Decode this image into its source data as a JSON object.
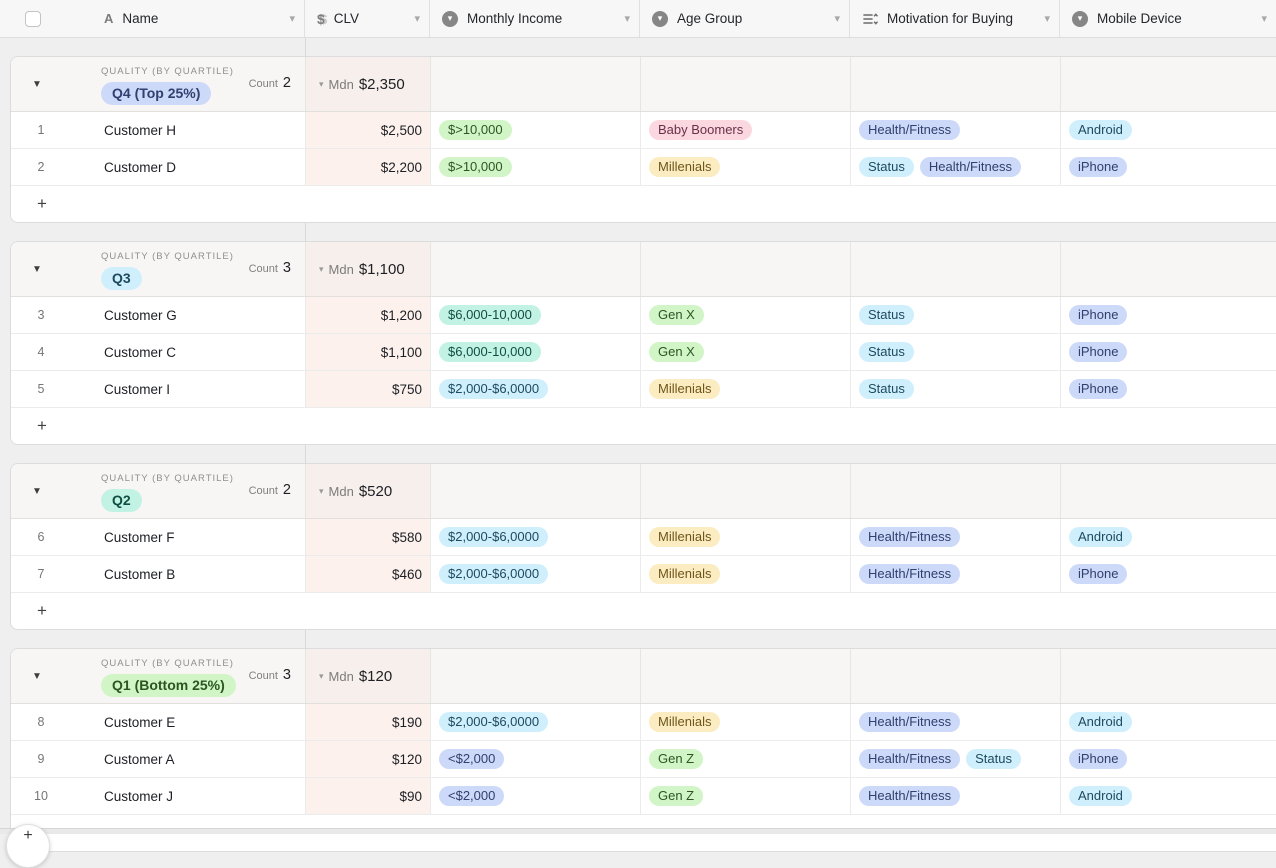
{
  "header": {
    "columns": [
      {
        "label": "Name",
        "icon": "text-field-icon"
      },
      {
        "label": "CLV",
        "icon": "currency-icon"
      },
      {
        "label": "Monthly Income",
        "icon": "single-select-icon"
      },
      {
        "label": "Age Group",
        "icon": "single-select-icon"
      },
      {
        "label": "Motivation for Buying",
        "icon": "multi-select-icon"
      },
      {
        "label": "Mobile Device",
        "icon": "single-select-icon"
      }
    ]
  },
  "labels": {
    "group_field": "QUALITY (BY QUARTILE)",
    "count": "Count",
    "summary": "Mdn",
    "add_row": "+"
  },
  "colors": {
    "blue": {
      "bg": "#cdd9f8",
      "text": "#30406f"
    },
    "cyan": {
      "bg": "#d0effc",
      "text": "#1d4a5f"
    },
    "teal": {
      "bg": "#c2f2e4",
      "text": "#0d4f42"
    },
    "green": {
      "bg": "#d2f5c7",
      "text": "#2b5620"
    },
    "yellow": {
      "bg": "#fcecc2",
      "text": "#6e561a"
    },
    "red": {
      "bg": "#fbd8e0",
      "text": "#6b3048"
    },
    "clv_column_tint": "#fcf1ec",
    "group_header_bg": "#f7f6f4"
  },
  "groups": [
    {
      "value": "Q4 (Top 25%)",
      "color": "blue",
      "count": "2",
      "median": "$2,350",
      "rows": [
        {
          "num": "1",
          "name": "Customer H",
          "clv": "$2,500",
          "income": [
            {
              "text": "$>10,000",
              "color": "green"
            }
          ],
          "age": [
            {
              "text": "Baby Boomers",
              "color": "red"
            }
          ],
          "motivation": [
            {
              "text": "Health/Fitness",
              "color": "blue"
            }
          ],
          "device": [
            {
              "text": "Android",
              "color": "cyan"
            }
          ]
        },
        {
          "num": "2",
          "name": "Customer D",
          "clv": "$2,200",
          "income": [
            {
              "text": "$>10,000",
              "color": "green"
            }
          ],
          "age": [
            {
              "text": "Millenials",
              "color": "yellow"
            }
          ],
          "motivation": [
            {
              "text": "Status",
              "color": "cyan"
            },
            {
              "text": "Health/Fitness",
              "color": "blue"
            }
          ],
          "device": [
            {
              "text": "iPhone",
              "color": "blue"
            }
          ]
        }
      ]
    },
    {
      "value": "Q3",
      "color": "cyan",
      "count": "3",
      "median": "$1,100",
      "rows": [
        {
          "num": "3",
          "name": "Customer G",
          "clv": "$1,200",
          "income": [
            {
              "text": "$6,000-10,000",
              "color": "teal"
            }
          ],
          "age": [
            {
              "text": "Gen X",
              "color": "green"
            }
          ],
          "motivation": [
            {
              "text": "Status",
              "color": "cyan"
            }
          ],
          "device": [
            {
              "text": "iPhone",
              "color": "blue"
            }
          ]
        },
        {
          "num": "4",
          "name": "Customer C",
          "clv": "$1,100",
          "income": [
            {
              "text": "$6,000-10,000",
              "color": "teal"
            }
          ],
          "age": [
            {
              "text": "Gen X",
              "color": "green"
            }
          ],
          "motivation": [
            {
              "text": "Status",
              "color": "cyan"
            }
          ],
          "device": [
            {
              "text": "iPhone",
              "color": "blue"
            }
          ]
        },
        {
          "num": "5",
          "name": "Customer I",
          "clv": "$750",
          "income": [
            {
              "text": "$2,000-$6,0000",
              "color": "cyan"
            }
          ],
          "age": [
            {
              "text": "Millenials",
              "color": "yellow"
            }
          ],
          "motivation": [
            {
              "text": "Status",
              "color": "cyan"
            }
          ],
          "device": [
            {
              "text": "iPhone",
              "color": "blue"
            }
          ]
        }
      ]
    },
    {
      "value": "Q2",
      "color": "teal",
      "count": "2",
      "median": "$520",
      "rows": [
        {
          "num": "6",
          "name": "Customer F",
          "clv": "$580",
          "income": [
            {
              "text": "$2,000-$6,0000",
              "color": "cyan"
            }
          ],
          "age": [
            {
              "text": "Millenials",
              "color": "yellow"
            }
          ],
          "motivation": [
            {
              "text": "Health/Fitness",
              "color": "blue"
            }
          ],
          "device": [
            {
              "text": "Android",
              "color": "cyan"
            }
          ]
        },
        {
          "num": "7",
          "name": "Customer B",
          "clv": "$460",
          "income": [
            {
              "text": "$2,000-$6,0000",
              "color": "cyan"
            }
          ],
          "age": [
            {
              "text": "Millenials",
              "color": "yellow"
            }
          ],
          "motivation": [
            {
              "text": "Health/Fitness",
              "color": "blue"
            }
          ],
          "device": [
            {
              "text": "iPhone",
              "color": "blue"
            }
          ]
        }
      ]
    },
    {
      "value": "Q1 (Bottom 25%)",
      "color": "green",
      "count": "3",
      "median": "$120",
      "rows": [
        {
          "num": "8",
          "name": "Customer E",
          "clv": "$190",
          "income": [
            {
              "text": "$2,000-$6,0000",
              "color": "cyan"
            }
          ],
          "age": [
            {
              "text": "Millenials",
              "color": "yellow"
            }
          ],
          "motivation": [
            {
              "text": "Health/Fitness",
              "color": "blue"
            }
          ],
          "device": [
            {
              "text": "Android",
              "color": "cyan"
            }
          ]
        },
        {
          "num": "9",
          "name": "Customer A",
          "clv": "$120",
          "income": [
            {
              "text": "<$2,000",
              "color": "blue"
            }
          ],
          "age": [
            {
              "text": "Gen Z",
              "color": "green"
            }
          ],
          "motivation": [
            {
              "text": "Health/Fitness",
              "color": "blue"
            },
            {
              "text": "Status",
              "color": "cyan"
            }
          ],
          "device": [
            {
              "text": "iPhone",
              "color": "blue"
            }
          ]
        },
        {
          "num": "10",
          "name": "Customer J",
          "clv": "$90",
          "income": [
            {
              "text": "<$2,000",
              "color": "blue"
            }
          ],
          "age": [
            {
              "text": "Gen Z",
              "color": "green"
            }
          ],
          "motivation": [
            {
              "text": "Health/Fitness",
              "color": "blue"
            }
          ],
          "device": [
            {
              "text": "Android",
              "color": "cyan"
            }
          ]
        }
      ]
    }
  ]
}
